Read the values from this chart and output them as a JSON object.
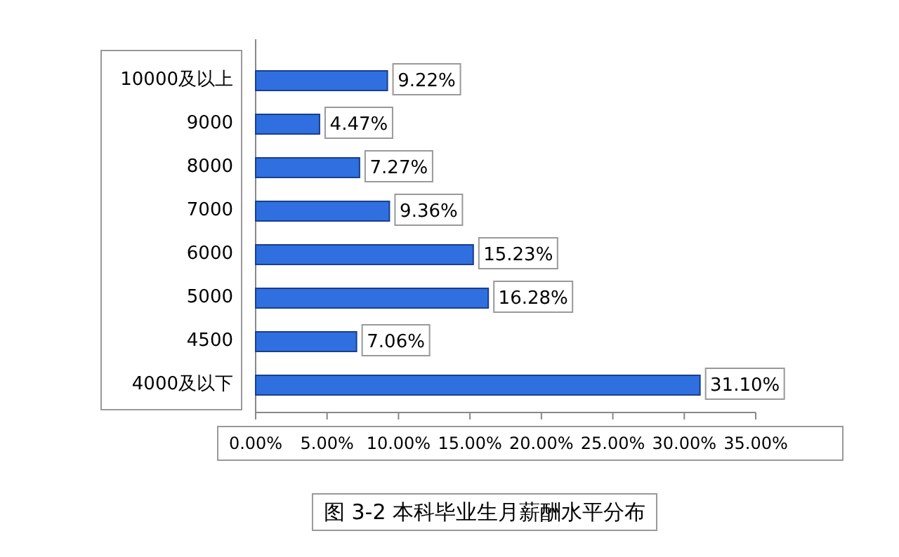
{
  "chart_data": {
    "type": "bar",
    "orientation": "horizontal",
    "title": "图 3-2  本科毕业生月薪酬水平分布",
    "categories": [
      "10000及以上",
      "9000",
      "8000",
      "7000",
      "6000",
      "5000",
      "4500",
      "4000及以下"
    ],
    "values": [
      9.22,
      4.47,
      7.27,
      9.36,
      15.23,
      16.28,
      7.06,
      31.1
    ],
    "value_labels": [
      "9.22%",
      "4.47%",
      "7.27%",
      "9.36%",
      "15.23%",
      "16.28%",
      "7.06%",
      "31.10%"
    ],
    "color": "#2f6fe0",
    "xlim": [
      0,
      35
    ],
    "xticks": [
      {
        "value": 0,
        "label": "0.00%"
      },
      {
        "value": 5,
        "label": "5.00%"
      },
      {
        "value": 10,
        "label": "10.00%"
      },
      {
        "value": 15,
        "label": "15.00%"
      },
      {
        "value": 20,
        "label": "20.00%"
      },
      {
        "value": 25,
        "label": "25.00%"
      },
      {
        "value": 30,
        "label": "30.00%"
      },
      {
        "value": 35,
        "label": "35.00%"
      }
    ]
  }
}
